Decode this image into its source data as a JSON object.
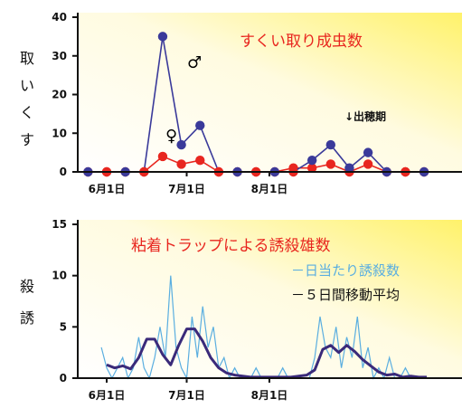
{
  "colors": {
    "male": "#3a3a9a",
    "female": "#e8261f",
    "daily": "#5aaee0",
    "moving": "#3a2a7a",
    "title": "#e8261f"
  },
  "chart_data": [
    {
      "type": "line",
      "title": "すくい取り成虫数",
      "ylabel": "すくい取",
      "ylim": [
        0,
        40
      ],
      "yticks": [
        0,
        10,
        20,
        30,
        40
      ],
      "xlim": [
        0,
        122
      ],
      "xticks": [
        {
          "x": 0,
          "label": "6月1日"
        },
        {
          "x": 30,
          "label": "7月1日"
        },
        {
          "x": 61,
          "label": "8月1日"
        }
      ],
      "annotation": "↓出穂期",
      "series": [
        {
          "name": "♂",
          "x": [
            -7,
            0,
            7,
            14,
            21,
            28,
            35,
            42,
            49,
            56,
            63,
            70,
            77,
            84,
            91,
            98,
            105,
            112,
            119
          ],
          "values": [
            0,
            0,
            0,
            0,
            35,
            7,
            12,
            0,
            0,
            0,
            0,
            0,
            3,
            7,
            1,
            5,
            0,
            0,
            0
          ]
        },
        {
          "name": "♀",
          "x": [
            -7,
            0,
            7,
            14,
            21,
            28,
            35,
            42,
            49,
            56,
            63,
            70,
            77,
            84,
            91,
            98,
            105,
            112,
            119
          ],
          "values": [
            0,
            0,
            0,
            0,
            4,
            2,
            3,
            0,
            0,
            0,
            0,
            1,
            1,
            2,
            0,
            2,
            0,
            0,
            0
          ]
        }
      ]
    },
    {
      "type": "line",
      "title": "粘着トラップによる誘殺雄数",
      "ylabel": "誘殺",
      "ylim": [
        0,
        15
      ],
      "yticks": [
        0,
        5,
        10,
        15
      ],
      "xlim": [
        0,
        122
      ],
      "xticks": [
        {
          "x": 0,
          "label": "6月1日"
        },
        {
          "x": 30,
          "label": "7月1日"
        },
        {
          "x": 61,
          "label": "8月1日"
        }
      ],
      "series": [
        {
          "name": "－日当たり誘殺数",
          "x": [
            -2,
            0,
            2,
            4,
            6,
            8,
            10,
            12,
            14,
            16,
            18,
            20,
            22,
            24,
            26,
            28,
            30,
            32,
            34,
            36,
            38,
            40,
            42,
            44,
            46,
            48,
            50,
            52,
            54,
            56,
            58,
            60,
            62,
            64,
            66,
            68,
            70,
            72,
            74,
            76,
            78,
            80,
            82,
            84,
            86,
            88,
            90,
            92,
            94,
            96,
            98,
            100,
            102,
            104,
            106,
            108,
            110,
            112,
            114,
            116,
            118,
            120
          ],
          "values": [
            3,
            1,
            0,
            1,
            2,
            0,
            1,
            4,
            1,
            0,
            2,
            5,
            2,
            10,
            3,
            1,
            0,
            6,
            2,
            7,
            3,
            5,
            1,
            2,
            0,
            1,
            0,
            0,
            0,
            1,
            0,
            0,
            0,
            0,
            1,
            0,
            0,
            0,
            0,
            0,
            2,
            6,
            3,
            2,
            5,
            1,
            4,
            2,
            6,
            1,
            3,
            0,
            1,
            0,
            2,
            0,
            0,
            1,
            0,
            0,
            0,
            0
          ]
        },
        {
          "name": "－５日間移動平均",
          "x": [
            0,
            3,
            6,
            9,
            12,
            15,
            18,
            21,
            24,
            27,
            30,
            33,
            36,
            39,
            42,
            45,
            48,
            51,
            54,
            57,
            60,
            63,
            66,
            69,
            72,
            75,
            78,
            81,
            84,
            87,
            90,
            93,
            96,
            99,
            102,
            105,
            108,
            111,
            114,
            117,
            120
          ],
          "values": [
            1.3,
            1.0,
            1.2,
            0.9,
            2.0,
            3.8,
            3.8,
            2.3,
            1.3,
            3.2,
            4.8,
            4.8,
            3.6,
            2.0,
            1.0,
            0.5,
            0.3,
            0.2,
            0.1,
            0.1,
            0.1,
            0.1,
            0.1,
            0.1,
            0.2,
            0.3,
            0.8,
            2.8,
            3.2,
            2.5,
            3.2,
            2.6,
            1.8,
            1.2,
            0.6,
            0.3,
            0.4,
            0.1,
            0.2,
            0.1,
            0.1
          ]
        }
      ]
    }
  ]
}
